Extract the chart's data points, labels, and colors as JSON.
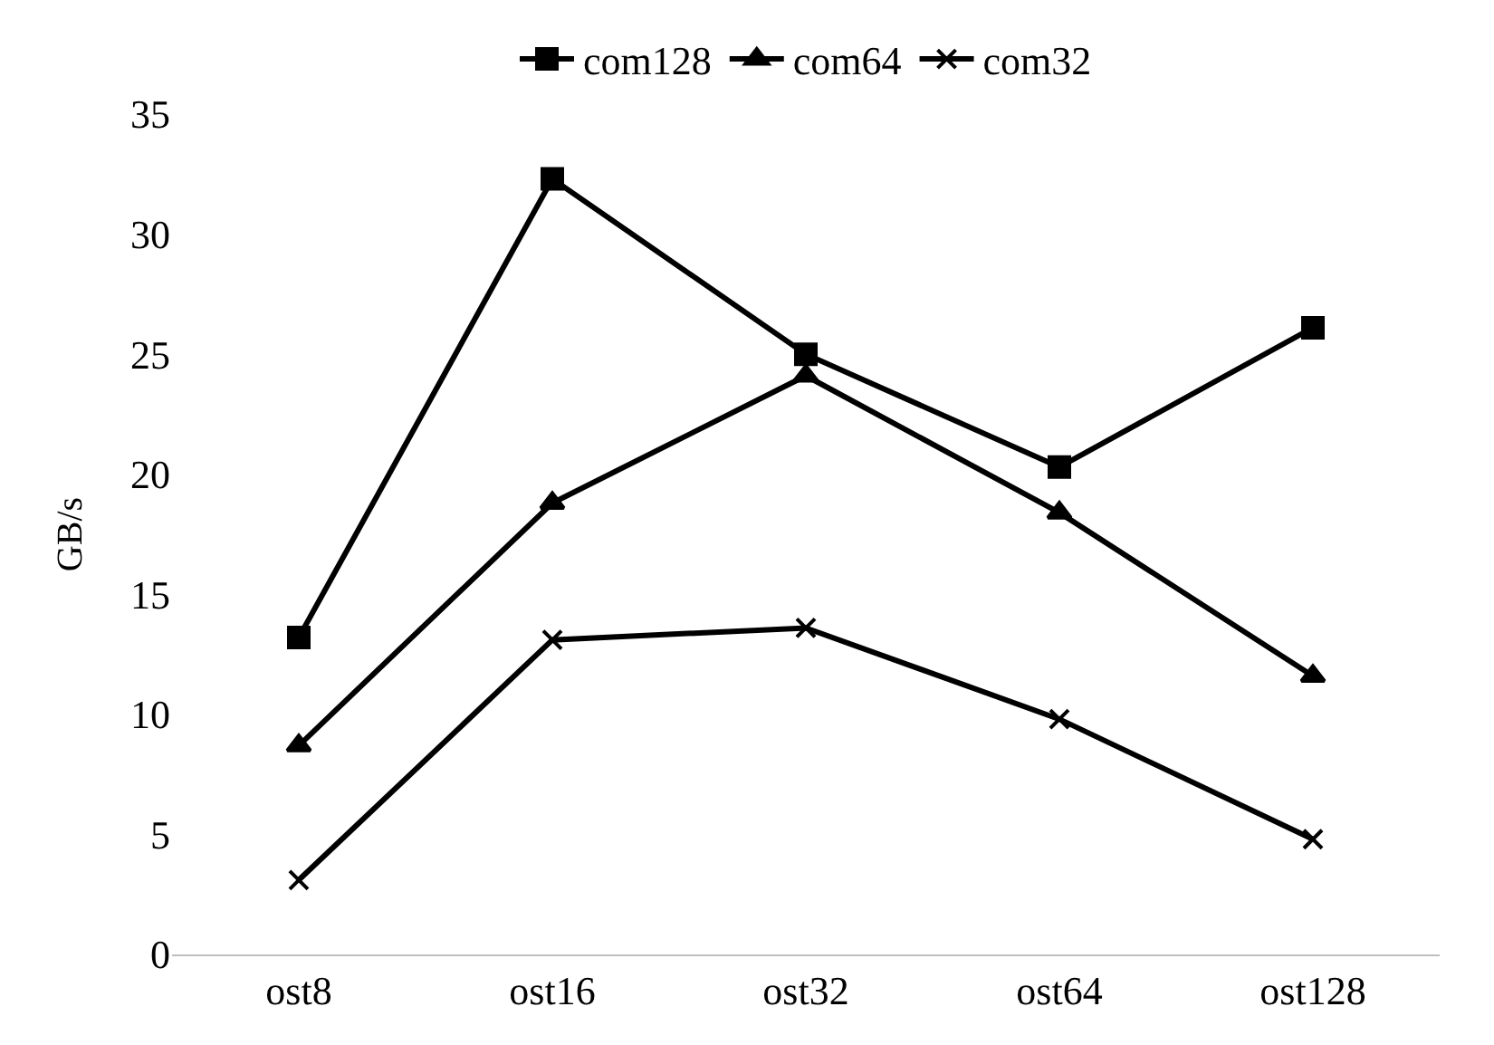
{
  "chart_data": {
    "type": "line",
    "ylabel": "GB/s",
    "categories": [
      "ost8",
      "ost16",
      "ost32",
      "ost64",
      "ost128"
    ],
    "series": [
      {
        "name": "com128",
        "color": "#000000",
        "marker": "square",
        "values": [
          13.2,
          32.3,
          25.0,
          20.3,
          26.1
        ]
      },
      {
        "name": "com64",
        "color": "#000000",
        "marker": "triangle",
        "values": [
          8.7,
          18.8,
          24.1,
          18.4,
          11.6
        ]
      },
      {
        "name": "com32",
        "color": "#000000",
        "marker": "cross",
        "values": [
          3.1,
          13.1,
          13.6,
          9.8,
          4.8
        ]
      }
    ],
    "ylim": [
      0,
      35
    ],
    "yticks": [
      0,
      5,
      10,
      15,
      20,
      25,
      30,
      35
    ],
    "grid": false,
    "legend": "top",
    "line_style": "solid"
  }
}
